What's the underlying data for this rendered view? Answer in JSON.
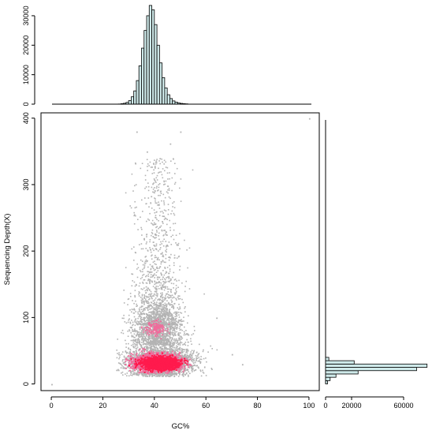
{
  "chart_data": [
    {
      "type": "scatter",
      "name_key": "main-scatter",
      "xlabel": "GC%",
      "ylabel": "Sequencing Depth(X)",
      "xlim": [
        -4,
        104
      ],
      "ylim": [
        -10,
        408
      ],
      "x_ticks": [
        0,
        20,
        40,
        60,
        80,
        100
      ],
      "y_ticks": [
        0,
        100,
        200,
        300,
        400
      ],
      "x_tick_labels": [
        "0",
        "20",
        "40",
        "60",
        "80",
        "100"
      ],
      "y_tick_labels": [
        "0",
        "100",
        "200",
        "300",
        "400"
      ],
      "colors": {
        "points": "#b3b3b3",
        "density_low": "#f06b9b",
        "density_high": "#ff1a4d"
      },
      "description_level": "dense cloud centered near GC 42%, depth 30X, with sparse tail up to ~380X",
      "outliers": [
        {
          "x": 0,
          "y": 0
        },
        {
          "x": 100,
          "y": 400
        },
        {
          "x": 33,
          "y": 380
        },
        {
          "x": 50,
          "y": 380
        },
        {
          "x": 46,
          "y": 362
        },
        {
          "x": 37,
          "y": 350
        },
        {
          "x": 42,
          "y": 340
        },
        {
          "x": 64,
          "y": 100
        },
        {
          "x": 70,
          "y": 45
        },
        {
          "x": 74,
          "y": 30
        }
      ],
      "grid": false
    },
    {
      "type": "bar",
      "name_key": "top-histogram",
      "xlabel": "",
      "ylabel": "",
      "orientation": "vertical",
      "bin_width": 1,
      "x_start": 26,
      "values": [
        50,
        150,
        300,
        600,
        1200,
        2500,
        4500,
        8000,
        13000,
        19000,
        25000,
        30000,
        33500,
        32000,
        27000,
        20000,
        14000,
        9000,
        5500,
        3200,
        1900,
        1100,
        700,
        420,
        260,
        160,
        100
      ],
      "x_range": [
        0,
        100
      ],
      "ylim": [
        0,
        34000
      ],
      "y_ticks": [
        0,
        10000,
        20000,
        30000
      ],
      "y_tick_labels": [
        "0",
        "10000",
        "20000",
        "30000"
      ],
      "fill": "#cfeaea"
    },
    {
      "type": "bar",
      "name_key": "right-histogram",
      "xlabel": "",
      "ylabel": "",
      "orientation": "horizontal",
      "bin_width": 5,
      "y_start": 0,
      "values": [
        1500,
        3500,
        8000,
        25000,
        70000,
        78000,
        22000,
        2500
      ],
      "xlim": [
        0,
        80000
      ],
      "x_ticks": [
        0,
        20000,
        60000
      ],
      "x_tick_labels": [
        "0",
        "20000",
        "60000"
      ],
      "fill": "#cfeaea"
    }
  ]
}
